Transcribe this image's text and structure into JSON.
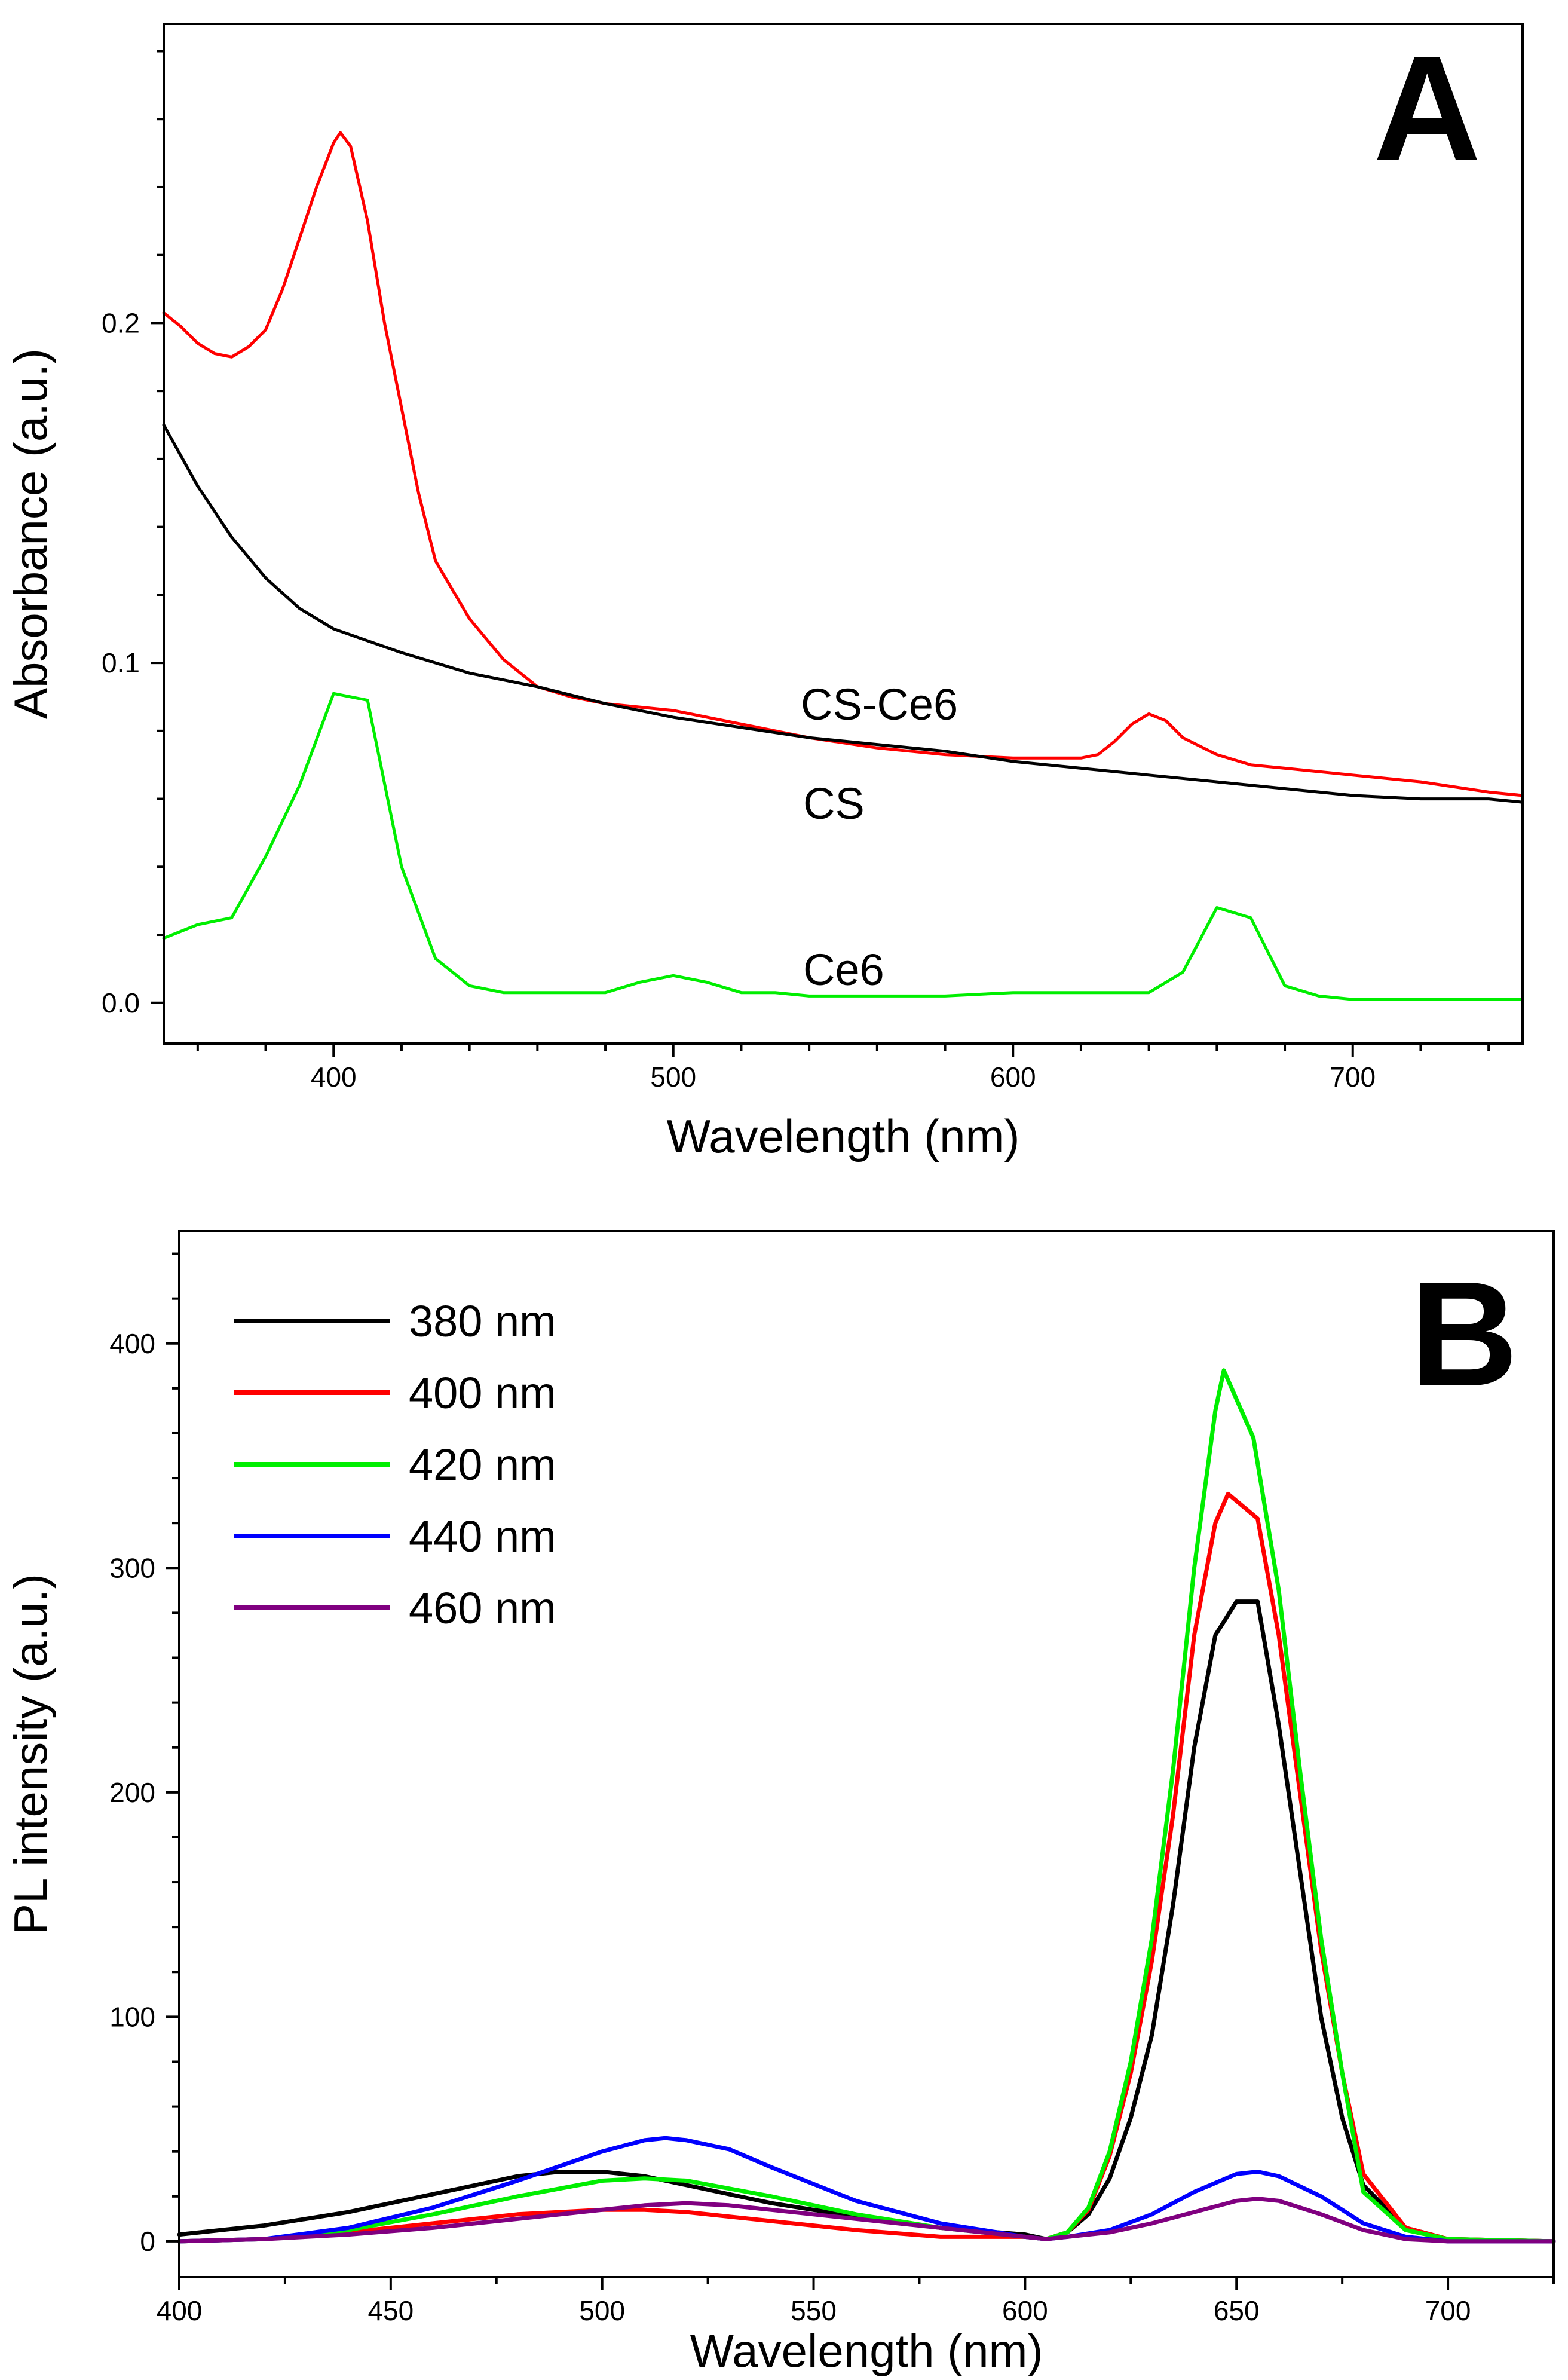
{
  "chart_data": [
    {
      "panel": "A",
      "type": "line",
      "xlabel": "Wavelength (nm)",
      "ylabel": "Absorbance (a.u.)",
      "xlim": [
        350,
        750
      ],
      "ylim": [
        -0.012,
        0.288
      ],
      "xticks": [
        400,
        500,
        600,
        700
      ],
      "yticks": [
        0.0,
        0.1,
        0.2
      ],
      "xtick_labels": [
        "400",
        "500",
        "600",
        "700"
      ],
      "ytick_labels": [
        "0.0",
        "0.1",
        "0.2"
      ],
      "series": [
        {
          "name": "CS-Ce6",
          "color": "#ff0000",
          "x": [
            350,
            355,
            360,
            365,
            370,
            375,
            380,
            385,
            390,
            395,
            400,
            402,
            405,
            410,
            415,
            420,
            425,
            430,
            440,
            450,
            460,
            470,
            480,
            500,
            520,
            540,
            560,
            580,
            600,
            620,
            625,
            630,
            635,
            640,
            645,
            650,
            660,
            670,
            680,
            700,
            720,
            740,
            750
          ],
          "values": [
            0.203,
            0.199,
            0.194,
            0.191,
            0.19,
            0.193,
            0.198,
            0.21,
            0.225,
            0.24,
            0.253,
            0.256,
            0.252,
            0.23,
            0.2,
            0.175,
            0.15,
            0.13,
            0.113,
            0.101,
            0.093,
            0.09,
            0.088,
            0.086,
            0.082,
            0.078,
            0.075,
            0.073,
            0.072,
            0.072,
            0.073,
            0.077,
            0.082,
            0.085,
            0.083,
            0.078,
            0.073,
            0.07,
            0.069,
            0.067,
            0.065,
            0.062,
            0.061
          ]
        },
        {
          "name": "CS",
          "color": "#000000",
          "x": [
            350,
            360,
            370,
            380,
            390,
            400,
            420,
            440,
            460,
            480,
            500,
            520,
            540,
            560,
            580,
            600,
            620,
            640,
            660,
            680,
            700,
            720,
            740,
            750
          ],
          "values": [
            0.17,
            0.152,
            0.137,
            0.125,
            0.116,
            0.11,
            0.103,
            0.097,
            0.093,
            0.088,
            0.084,
            0.081,
            0.078,
            0.076,
            0.074,
            0.071,
            0.069,
            0.067,
            0.065,
            0.063,
            0.061,
            0.06,
            0.06,
            0.059
          ]
        },
        {
          "name": "Ce6",
          "color": "#00ee00",
          "x": [
            350,
            360,
            370,
            380,
            390,
            400,
            410,
            420,
            430,
            440,
            450,
            460,
            480,
            490,
            500,
            510,
            520,
            530,
            540,
            560,
            580,
            600,
            620,
            640,
            650,
            660,
            670,
            680,
            690,
            700,
            720,
            750
          ],
          "values": [
            0.019,
            0.023,
            0.025,
            0.043,
            0.064,
            0.091,
            0.089,
            0.04,
            0.013,
            0.005,
            0.003,
            0.003,
            0.003,
            0.006,
            0.008,
            0.006,
            0.003,
            0.003,
            0.002,
            0.002,
            0.002,
            0.003,
            0.003,
            0.003,
            0.009,
            0.028,
            0.025,
            0.005,
            0.002,
            0.001,
            0.001,
            0.001
          ]
        }
      ],
      "annotations": [
        "CS-Ce6",
        "CS",
        "Ce6"
      ]
    },
    {
      "panel": "B",
      "type": "line",
      "xlabel": "Wavelength (nm)",
      "ylabel": "PL intensity (a.u.)",
      "xlim": [
        400,
        725
      ],
      "ylim": [
        -16,
        450
      ],
      "xticks": [
        400,
        450,
        500,
        550,
        600,
        650,
        700
      ],
      "yticks": [
        0,
        100,
        200,
        300,
        400
      ],
      "xtick_labels": [
        "400",
        "450",
        "500",
        "550",
        "600",
        "650",
        "700"
      ],
      "ytick_labels": [
        "0",
        "100",
        "200",
        "300",
        "400"
      ],
      "legend_position": "top-left",
      "series": [
        {
          "name": "380 nm",
          "color": "#000000",
          "x": [
            400,
            420,
            440,
            460,
            480,
            490,
            500,
            510,
            520,
            540,
            560,
            580,
            600,
            605,
            610,
            615,
            620,
            625,
            630,
            635,
            640,
            645,
            650,
            655,
            660,
            665,
            670,
            675,
            680,
            690,
            700,
            725
          ],
          "values": [
            3,
            7,
            13,
            21,
            29,
            31,
            31,
            29,
            25,
            17,
            11,
            6,
            3,
            1,
            4,
            12,
            28,
            55,
            92,
            150,
            220,
            270,
            285,
            285,
            230,
            165,
            100,
            55,
            25,
            6,
            1,
            0
          ]
        },
        {
          "name": "400 nm",
          "color": "#ff0000",
          "x": [
            400,
            420,
            440,
            460,
            480,
            500,
            510,
            520,
            540,
            560,
            580,
            600,
            605,
            610,
            615,
            620,
            625,
            630,
            635,
            640,
            645,
            648,
            655,
            660,
            665,
            670,
            675,
            680,
            690,
            700,
            725
          ],
          "values": [
            0,
            1,
            4,
            8,
            12,
            14,
            14,
            13,
            9,
            5,
            2,
            2,
            1,
            4,
            14,
            38,
            75,
            125,
            190,
            270,
            320,
            333,
            322,
            270,
            200,
            130,
            75,
            30,
            6,
            1,
            0
          ]
        },
        {
          "name": "420 nm",
          "color": "#00ee00",
          "x": [
            400,
            420,
            440,
            460,
            480,
            500,
            510,
            520,
            540,
            560,
            580,
            600,
            605,
            610,
            615,
            620,
            625,
            630,
            635,
            640,
            645,
            647,
            654,
            660,
            665,
            670,
            675,
            680,
            690,
            700,
            725
          ],
          "values": [
            0,
            1,
            5,
            12,
            20,
            27,
            28,
            27,
            20,
            12,
            6,
            2,
            1,
            4,
            15,
            40,
            80,
            135,
            210,
            300,
            370,
            388,
            358,
            290,
            210,
            135,
            75,
            22,
            5,
            1,
            0
          ]
        },
        {
          "name": "440 nm",
          "color": "#0000ff",
          "x": [
            400,
            420,
            440,
            460,
            480,
            500,
            510,
            515,
            520,
            530,
            540,
            560,
            580,
            600,
            605,
            610,
            620,
            630,
            640,
            650,
            655,
            660,
            670,
            680,
            690,
            700,
            725
          ],
          "values": [
            0,
            1,
            6,
            15,
            27,
            40,
            45,
            46,
            45,
            41,
            33,
            18,
            8,
            2,
            1,
            2,
            5,
            12,
            22,
            30,
            31,
            29,
            20,
            8,
            2,
            0,
            0
          ]
        },
        {
          "name": "460 nm",
          "color": "#800080",
          "x": [
            400,
            420,
            440,
            460,
            480,
            500,
            510,
            520,
            530,
            540,
            560,
            580,
            600,
            605,
            610,
            620,
            630,
            640,
            650,
            655,
            660,
            670,
            680,
            690,
            700,
            725
          ],
          "values": [
            0,
            1,
            3,
            6,
            10,
            14,
            16,
            17,
            16,
            14,
            10,
            6,
            2,
            1,
            2,
            4,
            8,
            13,
            18,
            19,
            18,
            12,
            5,
            1,
            0,
            0
          ]
        }
      ]
    }
  ]
}
